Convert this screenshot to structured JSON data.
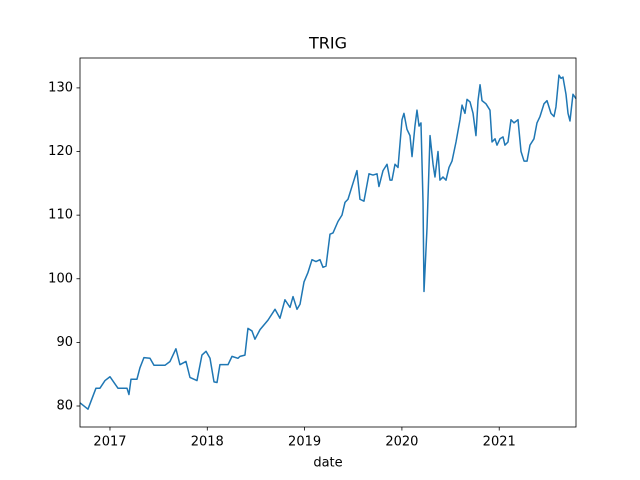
{
  "chart_data": {
    "type": "line",
    "title": "TRIG",
    "x_label": "date",
    "x": [
      2016.692,
      2016.774,
      2016.856,
      2016.897,
      2016.949,
      2017.0,
      2017.082,
      2017.175,
      2017.195,
      2017.216,
      2017.277,
      2017.308,
      2017.349,
      2017.411,
      2017.452,
      2017.565,
      2017.617,
      2017.678,
      2017.719,
      2017.781,
      2017.822,
      2017.894,
      2017.945,
      2017.987,
      2018.028,
      2018.069,
      2018.1,
      2018.13,
      2018.213,
      2018.254,
      2018.315,
      2018.336,
      2018.387,
      2018.418,
      2018.459,
      2018.49,
      2018.542,
      2018.624,
      2018.696,
      2018.747,
      2018.798,
      2018.85,
      2018.881,
      2018.922,
      2018.953,
      2018.994,
      2019.035,
      2019.076,
      2019.117,
      2019.158,
      2019.189,
      2019.22,
      2019.261,
      2019.292,
      2019.343,
      2019.384,
      2019.415,
      2019.446,
      2019.497,
      2019.538,
      2019.569,
      2019.61,
      2019.662,
      2019.703,
      2019.744,
      2019.764,
      2019.806,
      2019.847,
      2019.878,
      2019.898,
      2019.929,
      2019.96,
      2020.001,
      2020.021,
      2020.052,
      2020.083,
      2020.104,
      2020.134,
      2020.155,
      2020.176,
      2020.196,
      2020.217,
      2020.227,
      2020.258,
      2020.289,
      2020.32,
      2020.34,
      2020.371,
      2020.391,
      2020.422,
      2020.453,
      2020.484,
      2020.515,
      2020.556,
      2020.597,
      2020.618,
      2020.648,
      2020.669,
      2020.7,
      2020.731,
      2020.761,
      2020.782,
      2020.803,
      2020.823,
      2020.864,
      2020.905,
      2020.926,
      2020.957,
      2020.977,
      2021.008,
      2021.039,
      2021.059,
      2021.09,
      2021.121,
      2021.152,
      2021.193,
      2021.224,
      2021.255,
      2021.286,
      2021.316,
      2021.357,
      2021.388,
      2021.419,
      2021.46,
      2021.491,
      2021.532,
      2021.563,
      2021.583,
      2021.614,
      2021.635,
      2021.655,
      2021.686,
      2021.707,
      2021.727,
      2021.758,
      2021.789
    ],
    "series": [
      {
        "name": "TRIG",
        "color": "#1f77b4",
        "values": [
          80.5,
          79.5,
          82.8,
          82.8,
          84.0,
          84.6,
          82.8,
          82.8,
          81.8,
          84.2,
          84.2,
          86.0,
          87.6,
          87.5,
          86.4,
          86.4,
          87.0,
          89.0,
          86.5,
          87.0,
          84.5,
          84.0,
          88.0,
          88.6,
          87.5,
          83.8,
          83.7,
          86.5,
          86.5,
          87.8,
          87.5,
          87.8,
          88.0,
          92.2,
          91.8,
          90.5,
          92.0,
          93.5,
          95.2,
          93.8,
          96.7,
          95.5,
          97.2,
          95.2,
          96.0,
          99.5,
          101.0,
          103.0,
          102.7,
          103.0,
          101.8,
          102.0,
          107.0,
          107.2,
          109.0,
          110.0,
          112.0,
          112.5,
          115.0,
          117.0,
          112.5,
          112.2,
          116.5,
          116.3,
          116.5,
          114.5,
          117.0,
          118.0,
          115.5,
          115.5,
          118.0,
          117.5,
          125.0,
          126.0,
          123.5,
          122.5,
          119.2,
          124.0,
          126.5,
          124.0,
          124.5,
          112.0,
          98.0,
          108.0,
          122.5,
          118.0,
          116.0,
          120.0,
          115.5,
          116.0,
          115.5,
          117.5,
          118.5,
          121.5,
          125.0,
          127.3,
          126.0,
          128.2,
          127.8,
          126.0,
          122.5,
          128.0,
          130.5,
          128.0,
          127.5,
          126.5,
          121.5,
          122.0,
          121.0,
          122.0,
          122.3,
          121.0,
          121.5,
          125.0,
          124.5,
          125.0,
          120.0,
          118.5,
          118.5,
          121.0,
          122.0,
          124.5,
          125.5,
          127.5,
          128.0,
          126.0,
          125.5,
          127.0,
          132.0,
          131.5,
          131.7,
          129.0,
          126.0,
          124.8,
          129.0,
          128.3
        ]
      }
    ],
    "xlim": [
      2016.692,
      2021.789
    ],
    "xticks": [
      2017,
      2018,
      2019,
      2020,
      2021
    ],
    "ylim": [
      76.7,
      134.7
    ],
    "yticks": [
      80,
      90,
      100,
      110,
      120,
      130
    ],
    "grid": false
  }
}
